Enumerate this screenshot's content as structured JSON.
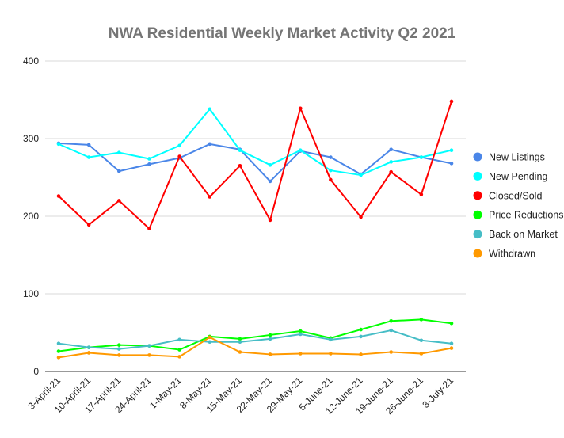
{
  "chart_data": {
    "type": "line",
    "title": "NWA Residential Weekly Market Activity Q2 2021",
    "xlabel": "",
    "ylabel": "",
    "ylim": [
      0,
      400
    ],
    "yticks": [
      "0",
      "100",
      "200",
      "300",
      "400"
    ],
    "grid": true,
    "legend_position": "right",
    "categories": [
      "3-April-21",
      "10-April-21",
      "17-April-21",
      "24-April-21",
      "1-May-21",
      "8-May-21",
      "15-May-21",
      "22-May-21",
      "29-May-21",
      "5-June-21",
      "12-June-21",
      "19-June-21",
      "26-June-21",
      "3-July-21"
    ],
    "series": [
      {
        "name": "New Listings",
        "color": "#4a86e8",
        "values": [
          294,
          292,
          258,
          267,
          275,
          293,
          286,
          245,
          284,
          276,
          254,
          286,
          276,
          268
        ]
      },
      {
        "name": "New Pending",
        "color": "#00ffff",
        "values": [
          293,
          276,
          282,
          274,
          291,
          338,
          285,
          266,
          285,
          259,
          253,
          270,
          276,
          285
        ]
      },
      {
        "name": "Closed/Sold",
        "color": "#ff0000",
        "values": [
          226,
          189,
          220,
          184,
          277,
          225,
          265,
          195,
          339,
          247,
          199,
          257,
          228,
          348
        ]
      },
      {
        "name": "Price Reductions",
        "color": "#00ff00",
        "values": [
          26,
          31,
          34,
          33,
          28,
          45,
          42,
          47,
          52,
          43,
          54,
          65,
          67,
          62
        ]
      },
      {
        "name": "Back on Market",
        "color": "#46bdc6",
        "values": [
          36,
          31,
          29,
          33,
          41,
          38,
          38,
          42,
          48,
          41,
          45,
          53,
          40,
          36
        ]
      },
      {
        "name": "Withdrawn",
        "color": "#ff9900",
        "values": [
          18,
          24,
          21,
          21,
          19,
          44,
          25,
          22,
          23,
          23,
          22,
          25,
          23,
          30
        ]
      }
    ]
  }
}
